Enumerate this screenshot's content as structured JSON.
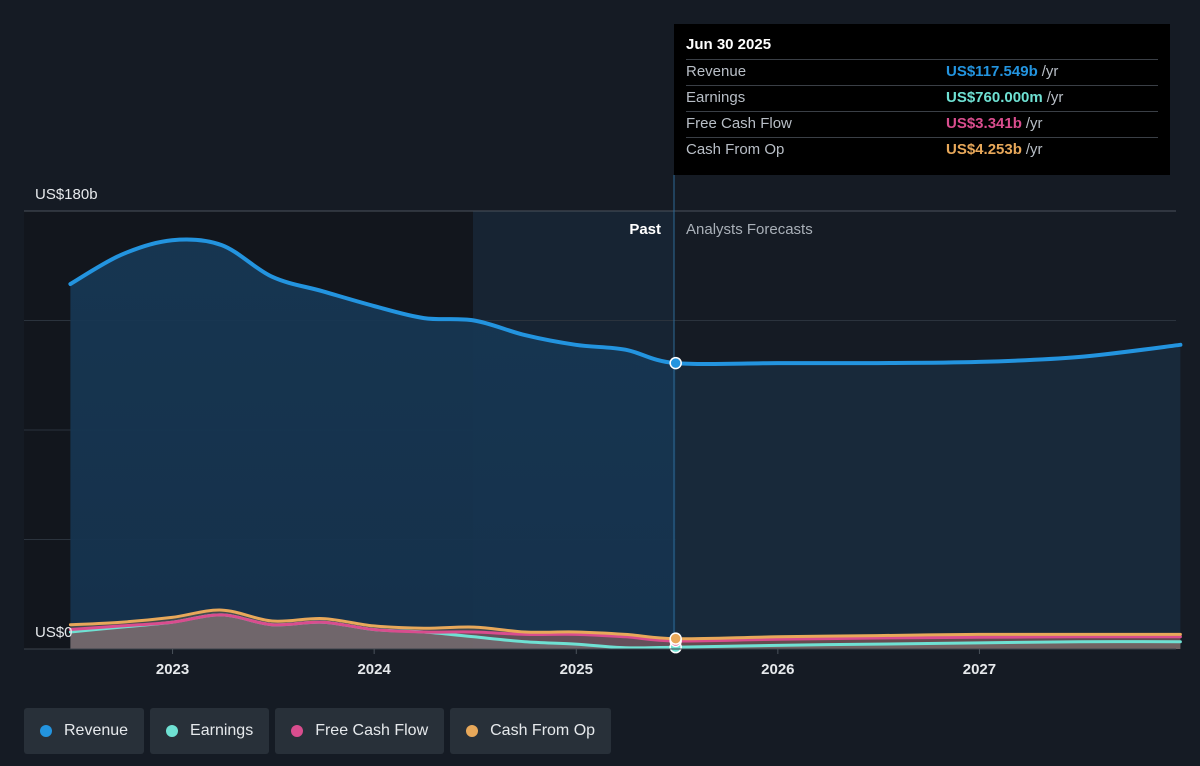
{
  "chart_data": {
    "type": "area",
    "y_axis_labels": [
      "US$180b",
      "US$0"
    ],
    "ylim": [
      0,
      180
    ],
    "x_tick_labels": [
      "2023",
      "2024",
      "2025",
      "2026",
      "2027"
    ],
    "past_label": "Past",
    "forecast_label": "Analysts Forecasts",
    "highlight_date": "Jun 30 2025",
    "grid": true,
    "series": [
      {
        "name": "Revenue",
        "color": "#2394df",
        "points": [
          [
            "2022-06-30",
            150
          ],
          [
            "2022-09-30",
            162
          ],
          [
            "2022-12-31",
            168
          ],
          [
            "2023-03-31",
            166
          ],
          [
            "2023-06-30",
            153
          ],
          [
            "2023-09-30",
            147
          ],
          [
            "2023-12-31",
            141
          ],
          [
            "2024-03-31",
            136
          ],
          [
            "2024-06-30",
            135
          ],
          [
            "2024-09-30",
            129
          ],
          [
            "2024-12-31",
            125
          ],
          [
            "2025-03-31",
            123
          ],
          [
            "2025-06-30",
            117.5
          ],
          [
            "2025-12-31",
            117.5
          ],
          [
            "2026-06-30",
            117.5
          ],
          [
            "2026-12-31",
            118
          ],
          [
            "2027-06-30",
            120
          ],
          [
            "2027-12-31",
            125
          ]
        ]
      },
      {
        "name": "Earnings",
        "color": "#6fe1d3",
        "points": [
          [
            "2022-06-30",
            7
          ],
          [
            "2022-09-30",
            9
          ],
          [
            "2022-12-31",
            11
          ],
          [
            "2023-03-31",
            14
          ],
          [
            "2023-06-30",
            10
          ],
          [
            "2023-09-30",
            11
          ],
          [
            "2023-12-31",
            8
          ],
          [
            "2024-03-31",
            7
          ],
          [
            "2024-06-30",
            5
          ],
          [
            "2024-09-30",
            3
          ],
          [
            "2024-12-31",
            2
          ],
          [
            "2025-03-31",
            0.5
          ],
          [
            "2025-06-30",
            0.76
          ],
          [
            "2025-12-31",
            1.5
          ],
          [
            "2026-06-30",
            2
          ],
          [
            "2026-12-31",
            2.5
          ],
          [
            "2027-06-30",
            3
          ],
          [
            "2027-12-31",
            3
          ]
        ]
      },
      {
        "name": "Free Cash Flow",
        "color": "#d94d8e",
        "points": [
          [
            "2022-06-30",
            8
          ],
          [
            "2022-09-30",
            9.5
          ],
          [
            "2022-12-31",
            11
          ],
          [
            "2023-03-31",
            14
          ],
          [
            "2023-06-30",
            10
          ],
          [
            "2023-09-30",
            11
          ],
          [
            "2023-12-31",
            8
          ],
          [
            "2024-03-31",
            7
          ],
          [
            "2024-06-30",
            7
          ],
          [
            "2024-09-30",
            6
          ],
          [
            "2024-12-31",
            6
          ],
          [
            "2025-03-31",
            5
          ],
          [
            "2025-06-30",
            3.341
          ],
          [
            "2025-12-31",
            4
          ],
          [
            "2026-06-30",
            4.5
          ],
          [
            "2026-12-31",
            4.8
          ],
          [
            "2027-06-30",
            5
          ],
          [
            "2027-12-31",
            5
          ]
        ]
      },
      {
        "name": "Cash From Op",
        "color": "#e8a85a",
        "points": [
          [
            "2022-06-30",
            10
          ],
          [
            "2022-09-30",
            11
          ],
          [
            "2022-12-31",
            13
          ],
          [
            "2023-03-31",
            16
          ],
          [
            "2023-06-30",
            11.5
          ],
          [
            "2023-09-30",
            12.5
          ],
          [
            "2023-12-31",
            9.5
          ],
          [
            "2024-03-31",
            8.5
          ],
          [
            "2024-06-30",
            9
          ],
          [
            "2024-09-30",
            7
          ],
          [
            "2024-12-31",
            7
          ],
          [
            "2025-03-31",
            6
          ],
          [
            "2025-06-30",
            4.253
          ],
          [
            "2025-12-31",
            5
          ],
          [
            "2026-06-30",
            5.5
          ],
          [
            "2026-12-31",
            6
          ],
          [
            "2027-06-30",
            6
          ],
          [
            "2027-12-31",
            6
          ]
        ]
      }
    ]
  },
  "tooltip": {
    "date": "Jun 30 2025",
    "rows": [
      {
        "label": "Revenue",
        "value": "US$117.549b",
        "unit": "/yr",
        "color": "#2394df"
      },
      {
        "label": "Earnings",
        "value": "US$760.000m",
        "unit": "/yr",
        "color": "#6fe1d3"
      },
      {
        "label": "Free Cash Flow",
        "value": "US$3.341b",
        "unit": "/yr",
        "color": "#d94d8e"
      },
      {
        "label": "Cash From Op",
        "value": "US$4.253b",
        "unit": "/yr",
        "color": "#e8a85a"
      }
    ]
  },
  "legend": [
    {
      "label": "Revenue",
      "color": "#2394df"
    },
    {
      "label": "Earnings",
      "color": "#6fe1d3"
    },
    {
      "label": "Free Cash Flow",
      "color": "#d94d8e"
    },
    {
      "label": "Cash From Op",
      "color": "#e8a85a"
    }
  ]
}
